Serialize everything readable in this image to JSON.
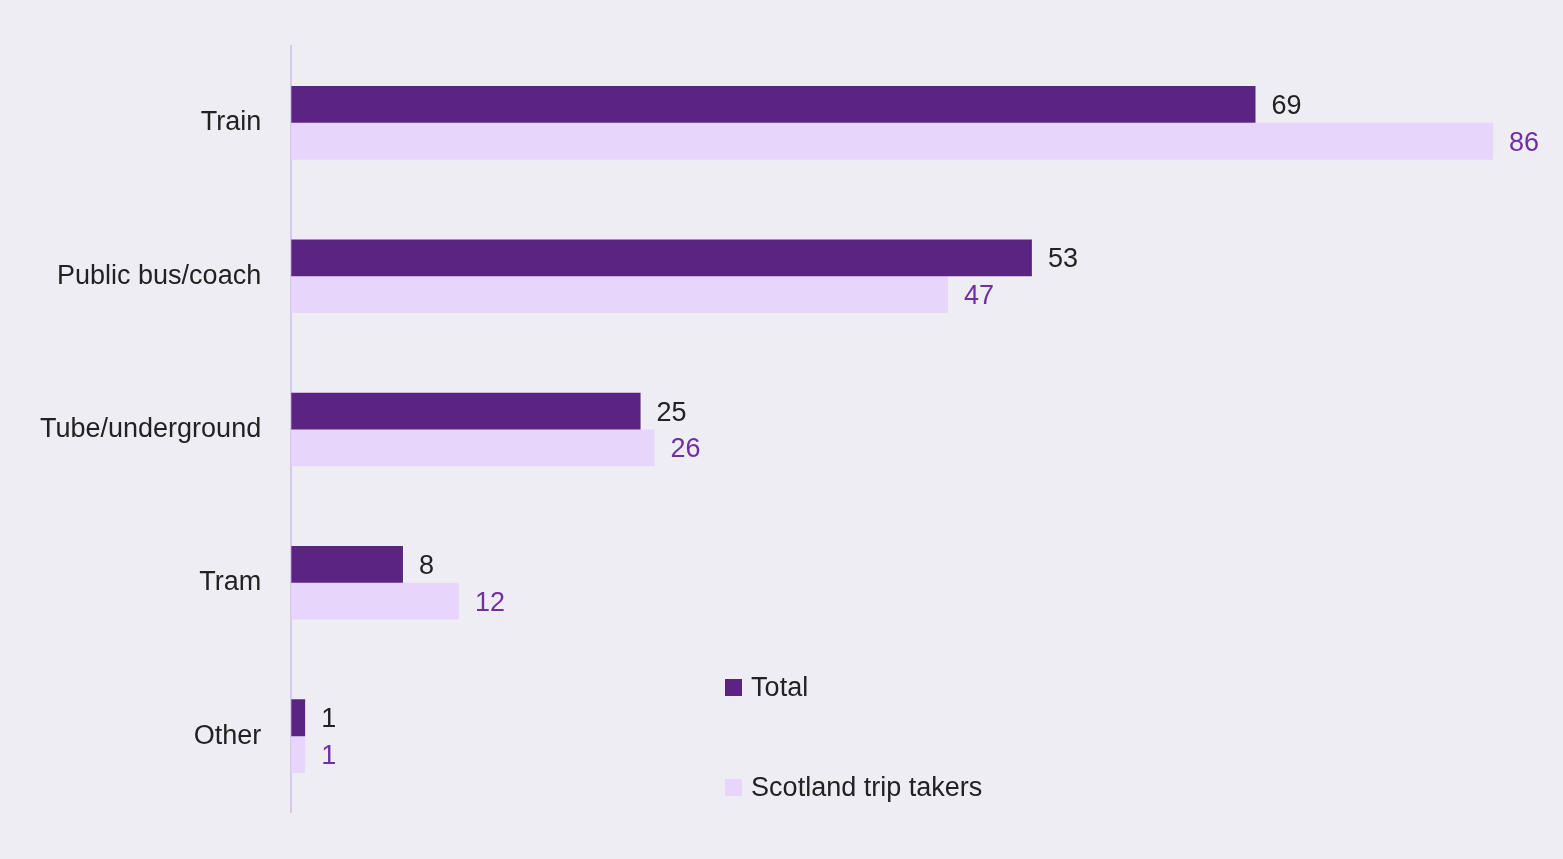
{
  "chart_data": {
    "type": "bar",
    "orientation": "horizontal",
    "categories": [
      "Train",
      "Public bus/coach",
      "Tube/underground",
      "Tram",
      "Other"
    ],
    "series": [
      {
        "name": "Total",
        "color": "#5b2382",
        "values": [
          69,
          53,
          25,
          8,
          1
        ]
      },
      {
        "name": "Scotland trip takers",
        "color": "#e8d5fc",
        "values": [
          86,
          47,
          26,
          12,
          1
        ]
      }
    ],
    "data_labels": true,
    "legend": "bottom"
  }
}
